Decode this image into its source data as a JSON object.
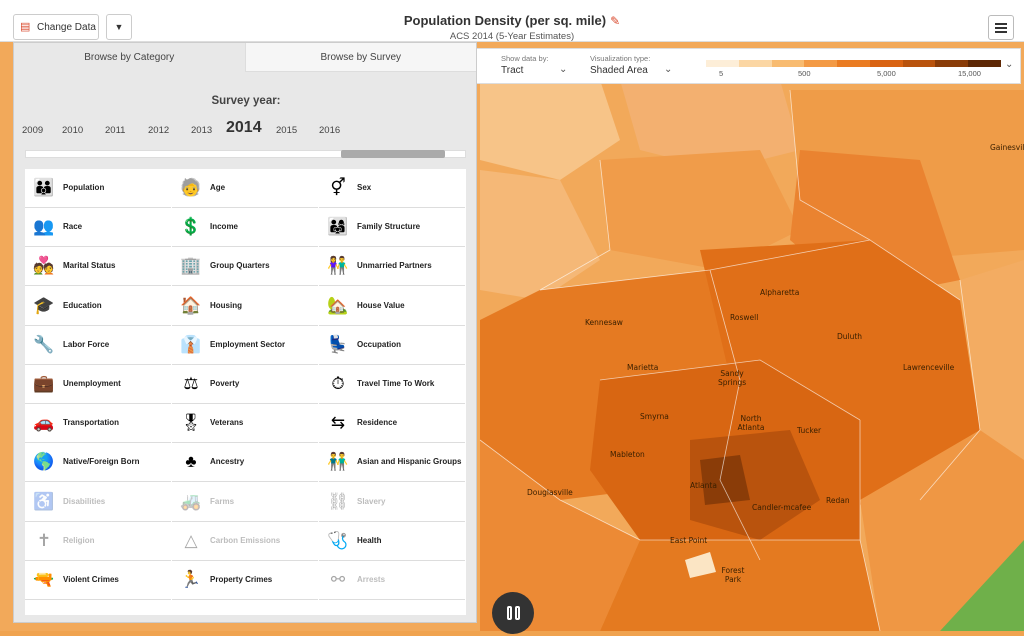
{
  "header": {
    "change_data_label": "Change Data",
    "title": "Population Density (per sq. mile)",
    "subtitle": "ACS 2014 (5-Year Estimates)"
  },
  "controls": {
    "show_data_caption": "Show data by:",
    "show_data_value": "Tract",
    "viz_caption": "Visualization type:",
    "viz_value": "Shaded Area"
  },
  "legend": {
    "colors": [
      "#fdeed8",
      "#fbd6a3",
      "#f8bb70",
      "#f39a45",
      "#ea7c22",
      "#d96312",
      "#b9530d",
      "#8a3c08",
      "#5e2805"
    ],
    "ticks": [
      "5",
      "500",
      "5,000",
      "15,000"
    ]
  },
  "panel": {
    "tabs": [
      "Browse by Category",
      "Browse by Survey"
    ],
    "survey_year_label": "Survey year:",
    "years": [
      "2009",
      "2010",
      "2011",
      "2012",
      "2013",
      "2014",
      "2015",
      "2016"
    ],
    "selected_year": "2014",
    "categories": [
      {
        "label": "Population",
        "icon": "people-icon",
        "glyph": "👪",
        "enabled": true
      },
      {
        "label": "Age",
        "icon": "age-icon",
        "glyph": "🧓",
        "enabled": true
      },
      {
        "label": "Sex",
        "icon": "sex-icon",
        "glyph": "⚥",
        "enabled": true
      },
      {
        "label": "Race",
        "icon": "race-icon",
        "glyph": "👥",
        "enabled": true
      },
      {
        "label": "Income",
        "icon": "income-icon",
        "glyph": "💲",
        "enabled": true
      },
      {
        "label": "Family Structure",
        "icon": "family-icon",
        "glyph": "👨‍👩‍👧",
        "enabled": true
      },
      {
        "label": "Marital Status",
        "icon": "marital-icon",
        "glyph": "💑",
        "enabled": true
      },
      {
        "label": "Group Quarters",
        "icon": "building-icon",
        "glyph": "🏢",
        "enabled": true
      },
      {
        "label": "Unmarried Partners",
        "icon": "partners-icon",
        "glyph": "👫",
        "enabled": true
      },
      {
        "label": "Education",
        "icon": "graduation-cap-icon",
        "glyph": "🎓",
        "enabled": true
      },
      {
        "label": "Housing",
        "icon": "house-icon",
        "glyph": "🏠",
        "enabled": true
      },
      {
        "label": "House Value",
        "icon": "house-value-icon",
        "glyph": "🏡",
        "enabled": true
      },
      {
        "label": "Labor Force",
        "icon": "wrench-icon",
        "glyph": "🔧",
        "enabled": true
      },
      {
        "label": "Employment Sector",
        "icon": "workers-icon",
        "glyph": "👔",
        "enabled": true
      },
      {
        "label": "Occupation",
        "icon": "desk-worker-icon",
        "glyph": "💺",
        "enabled": true
      },
      {
        "label": "Unemployment",
        "icon": "briefcase-icon",
        "glyph": "💼",
        "enabled": true
      },
      {
        "label": "Poverty",
        "icon": "scales-icon",
        "glyph": "⚖",
        "enabled": true
      },
      {
        "label": "Travel Time To Work",
        "icon": "clock-person-icon",
        "glyph": "⏱",
        "enabled": true
      },
      {
        "label": "Transportation",
        "icon": "car-icon",
        "glyph": "🚗",
        "enabled": true
      },
      {
        "label": "Veterans",
        "icon": "soldier-icon",
        "glyph": "🎖",
        "enabled": true
      },
      {
        "label": "Residence",
        "icon": "arrows-icon",
        "glyph": "⇆",
        "enabled": true
      },
      {
        "label": "Native/Foreign Born",
        "icon": "globe-icon",
        "glyph": "🌎",
        "enabled": true
      },
      {
        "label": "Ancestry",
        "icon": "tree-icon",
        "glyph": "♣",
        "enabled": true
      },
      {
        "label": "Asian and Hispanic Groups",
        "icon": "group-icon",
        "glyph": "👬",
        "enabled": true
      },
      {
        "label": "Disabilities",
        "icon": "wheelchair-icon",
        "glyph": "♿",
        "enabled": false
      },
      {
        "label": "Farms",
        "icon": "tractor-icon",
        "glyph": "🚜",
        "enabled": false
      },
      {
        "label": "Slavery",
        "icon": "chain-icon",
        "glyph": "⛓",
        "enabled": false
      },
      {
        "label": "Religion",
        "icon": "religion-icon",
        "glyph": "✝",
        "enabled": false
      },
      {
        "label": "Carbon Emissions",
        "icon": "co2-icon",
        "glyph": "△",
        "enabled": false
      },
      {
        "label": "Health",
        "icon": "stethoscope-icon",
        "glyph": "🩺",
        "enabled": true
      },
      {
        "label": "Violent Crimes",
        "icon": "violent-crime-icon",
        "glyph": "🔫",
        "enabled": true
      },
      {
        "label": "Property Crimes",
        "icon": "property-crime-icon",
        "glyph": "🏃",
        "enabled": true
      },
      {
        "label": "Arrests",
        "icon": "handcuffs-icon",
        "glyph": "⚯",
        "enabled": false
      }
    ]
  },
  "map": {
    "places": [
      "Gainesville",
      "Alpharetta",
      "Kennesaw",
      "Roswell",
      "Duluth",
      "Marietta",
      "Sandy Springs",
      "Lawrenceville",
      "Smyrna",
      "North Atlanta",
      "Tucker",
      "Mableton",
      "Atlanta",
      "Douglasville",
      "Candler-mcafee",
      "Redan",
      "East Point",
      "Forest Park"
    ]
  }
}
